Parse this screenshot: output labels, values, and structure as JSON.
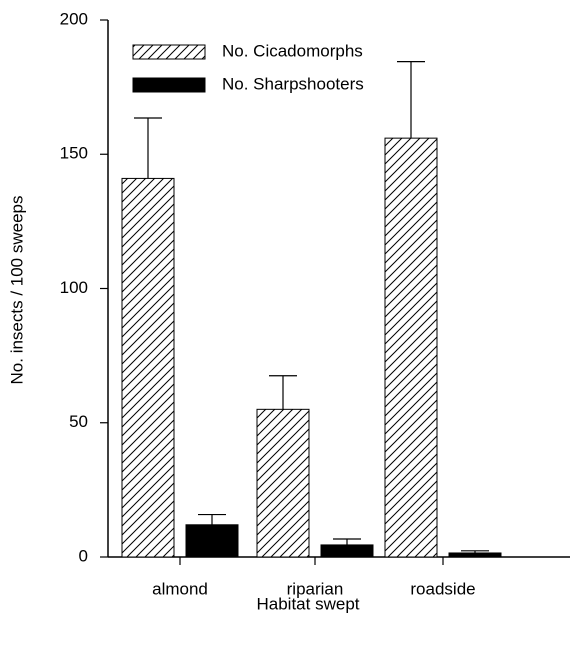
{
  "chart_data": {
    "type": "bar",
    "x_label": "Habitat swept",
    "y_label": "No. insects / 100 sweeps",
    "categories": [
      "almond",
      "riparian",
      "roadside"
    ],
    "series": [
      {
        "name": "No. Cicadomorphs",
        "color": "#ffffff",
        "hatch": true,
        "values": [
          141,
          55,
          156
        ],
        "errors": [
          22.5,
          12.5,
          28.5
        ]
      },
      {
        "name": "No. Sharpshooters",
        "color": "#000000",
        "hatch": false,
        "values": [
          12,
          4.5,
          1.5
        ],
        "errors": [
          3.8,
          2.2,
          0.8
        ]
      }
    ],
    "ylim": [
      0,
      200
    ],
    "yticks": [
      0,
      50,
      100,
      150,
      200
    ],
    "legend": "top-left"
  }
}
